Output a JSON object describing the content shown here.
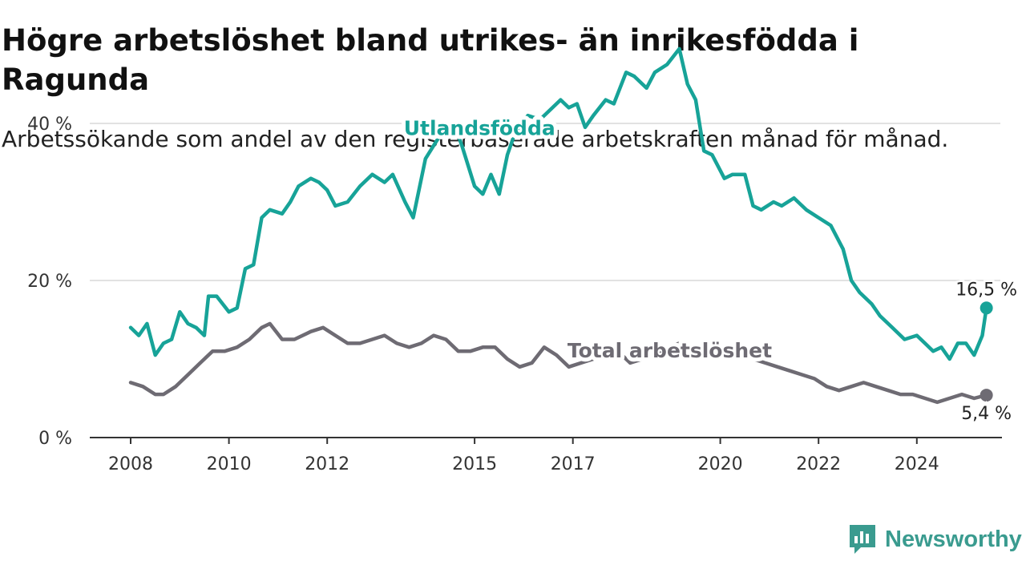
{
  "title": "Högre arbetslöshet bland utrikes- än inrikesfödda i Ragunda",
  "subtitle": "Arbetssökande som andel av den registerbaserade arbetskraften månad för månad.",
  "brand": {
    "name": "Newsworthy",
    "logo_icon": "newsworthy-chart-logo-icon"
  },
  "colors": {
    "foreign_born": "#17a398",
    "total": "#6e6b73",
    "grid": "#d9d9d9",
    "axis": "#333333",
    "brand": "#3a9b8f"
  },
  "chart_data": {
    "type": "line",
    "title": "Högre arbetslöshet bland utrikes- än inrikesfödda i Ragunda",
    "subtitle": "Arbetssökande som andel av den registerbaserade arbetskraften månad för månad.",
    "xlabel": "",
    "ylabel": "",
    "x_ticks": [
      "2008",
      "2010",
      "2012",
      "2015",
      "2017",
      "2020",
      "2022",
      "2024"
    ],
    "y_ticks": [
      "0 %",
      "20 %",
      "40 %"
    ],
    "ylim": [
      0,
      50
    ],
    "xlim": [
      "2008-01",
      "2025-06"
    ],
    "grid": "horizontal",
    "legend": "inline labels on lines",
    "series": [
      {
        "name": "Utlandsfödda",
        "end_label": "16,5 %",
        "points": [
          [
            "2008-01",
            14
          ],
          [
            "2008-03",
            13
          ],
          [
            "2008-05",
            14.5
          ],
          [
            "2008-07",
            10.5
          ],
          [
            "2008-09",
            12
          ],
          [
            "2008-11",
            12.5
          ],
          [
            "2009-01",
            16
          ],
          [
            "2009-03",
            14.5
          ],
          [
            "2009-05",
            14
          ],
          [
            "2009-07",
            13
          ],
          [
            "2009-08",
            18
          ],
          [
            "2009-10",
            18
          ],
          [
            "2010-01",
            16
          ],
          [
            "2010-03",
            16.5
          ],
          [
            "2010-05",
            21.5
          ],
          [
            "2010-07",
            22
          ],
          [
            "2010-09",
            28
          ],
          [
            "2010-11",
            29
          ],
          [
            "2011-02",
            28.5
          ],
          [
            "2011-04",
            30
          ],
          [
            "2011-06",
            32
          ],
          [
            "2011-09",
            33
          ],
          [
            "2011-11",
            32.5
          ],
          [
            "2012-01",
            31.5
          ],
          [
            "2012-03",
            29.5
          ],
          [
            "2012-06",
            30
          ],
          [
            "2012-09",
            32
          ],
          [
            "2012-12",
            33.5
          ],
          [
            "2013-03",
            32.5
          ],
          [
            "2013-05",
            33.5
          ],
          [
            "2013-08",
            30
          ],
          [
            "2013-10",
            28
          ],
          [
            "2014-01",
            35.5
          ],
          [
            "2014-04",
            38
          ],
          [
            "2014-08",
            40
          ],
          [
            "2014-10",
            37
          ],
          [
            "2015-01",
            32
          ],
          [
            "2015-03",
            31
          ],
          [
            "2015-05",
            33.5
          ],
          [
            "2015-07",
            31
          ],
          [
            "2015-09",
            36
          ],
          [
            "2015-11",
            39
          ],
          [
            "2016-02",
            41
          ],
          [
            "2016-05",
            40.5
          ],
          [
            "2016-08",
            42
          ],
          [
            "2016-10",
            43
          ],
          [
            "2016-12",
            42
          ],
          [
            "2017-02",
            42.5
          ],
          [
            "2017-04",
            39.5
          ],
          [
            "2017-06",
            41
          ],
          [
            "2017-09",
            43
          ],
          [
            "2017-11",
            42.5
          ],
          [
            "2018-02",
            46.5
          ],
          [
            "2018-04",
            46
          ],
          [
            "2018-07",
            44.5
          ],
          [
            "2018-09",
            46.5
          ],
          [
            "2018-12",
            47.5
          ],
          [
            "2019-03",
            49.5
          ],
          [
            "2019-05",
            45
          ],
          [
            "2019-07",
            43
          ],
          [
            "2019-09",
            36.5
          ],
          [
            "2019-11",
            36
          ],
          [
            "2020-02",
            33
          ],
          [
            "2020-04",
            33.5
          ],
          [
            "2020-07",
            33.5
          ],
          [
            "2020-09",
            29.5
          ],
          [
            "2020-11",
            29
          ],
          [
            "2021-02",
            30
          ],
          [
            "2021-04",
            29.5
          ],
          [
            "2021-07",
            30.5
          ],
          [
            "2021-10",
            29
          ],
          [
            "2022-01",
            28
          ],
          [
            "2022-04",
            27
          ],
          [
            "2022-07",
            24
          ],
          [
            "2022-09",
            20
          ],
          [
            "2022-11",
            18.5
          ],
          [
            "2023-02",
            17
          ],
          [
            "2023-04",
            15.5
          ],
          [
            "2023-07",
            14
          ],
          [
            "2023-10",
            12.5
          ],
          [
            "2024-01",
            13
          ],
          [
            "2024-03",
            12
          ],
          [
            "2024-05",
            11
          ],
          [
            "2024-07",
            11.5
          ],
          [
            "2024-09",
            10
          ],
          [
            "2024-11",
            12
          ],
          [
            "2025-01",
            12
          ],
          [
            "2025-03",
            10.5
          ],
          [
            "2025-05",
            13
          ],
          [
            "2025-06",
            16.5
          ]
        ]
      },
      {
        "name": "Total arbetslöshet",
        "end_label": "5,4 %",
        "points": [
          [
            "2008-01",
            7
          ],
          [
            "2008-04",
            6.5
          ],
          [
            "2008-07",
            5.5
          ],
          [
            "2008-09",
            5.5
          ],
          [
            "2008-12",
            6.5
          ],
          [
            "2009-03",
            8
          ],
          [
            "2009-06",
            9.5
          ],
          [
            "2009-09",
            11
          ],
          [
            "2009-12",
            11
          ],
          [
            "2010-03",
            11.5
          ],
          [
            "2010-06",
            12.5
          ],
          [
            "2010-09",
            14
          ],
          [
            "2010-11",
            14.5
          ],
          [
            "2011-02",
            12.5
          ],
          [
            "2011-05",
            12.5
          ],
          [
            "2011-09",
            13.5
          ],
          [
            "2011-12",
            14
          ],
          [
            "2012-03",
            13
          ],
          [
            "2012-06",
            12
          ],
          [
            "2012-09",
            12
          ],
          [
            "2012-12",
            12.5
          ],
          [
            "2013-03",
            13
          ],
          [
            "2013-06",
            12
          ],
          [
            "2013-09",
            11.5
          ],
          [
            "2013-12",
            12
          ],
          [
            "2014-03",
            13
          ],
          [
            "2014-06",
            12.5
          ],
          [
            "2014-09",
            11
          ],
          [
            "2014-12",
            11
          ],
          [
            "2015-03",
            11.5
          ],
          [
            "2015-06",
            11.5
          ],
          [
            "2015-09",
            10
          ],
          [
            "2015-12",
            9
          ],
          [
            "2016-03",
            9.5
          ],
          [
            "2016-06",
            11.5
          ],
          [
            "2016-09",
            10.5
          ],
          [
            "2016-12",
            9
          ],
          [
            "2017-03",
            9.5
          ],
          [
            "2017-06",
            10
          ],
          [
            "2017-09",
            11.5
          ],
          [
            "2017-12",
            11
          ],
          [
            "2018-03",
            9.5
          ],
          [
            "2018-06",
            10
          ],
          [
            "2018-09",
            10.5
          ],
          [
            "2018-12",
            11.5
          ],
          [
            "2019-03",
            12
          ],
          [
            "2019-06",
            11.5
          ],
          [
            "2019-09",
            11
          ],
          [
            "2019-12",
            10.5
          ],
          [
            "2020-03",
            11
          ],
          [
            "2020-06",
            10.5
          ],
          [
            "2020-09",
            10
          ],
          [
            "2020-12",
            9.5
          ],
          [
            "2021-03",
            9
          ],
          [
            "2021-06",
            8.5
          ],
          [
            "2021-09",
            8
          ],
          [
            "2021-12",
            7.5
          ],
          [
            "2022-03",
            6.5
          ],
          [
            "2022-06",
            6
          ],
          [
            "2022-09",
            6.5
          ],
          [
            "2022-12",
            7
          ],
          [
            "2023-03",
            6.5
          ],
          [
            "2023-06",
            6
          ],
          [
            "2023-09",
            5.5
          ],
          [
            "2023-12",
            5.5
          ],
          [
            "2024-03",
            5
          ],
          [
            "2024-06",
            4.5
          ],
          [
            "2024-09",
            5
          ],
          [
            "2024-12",
            5.5
          ],
          [
            "2025-03",
            5
          ],
          [
            "2025-06",
            5.4
          ]
        ]
      }
    ]
  }
}
